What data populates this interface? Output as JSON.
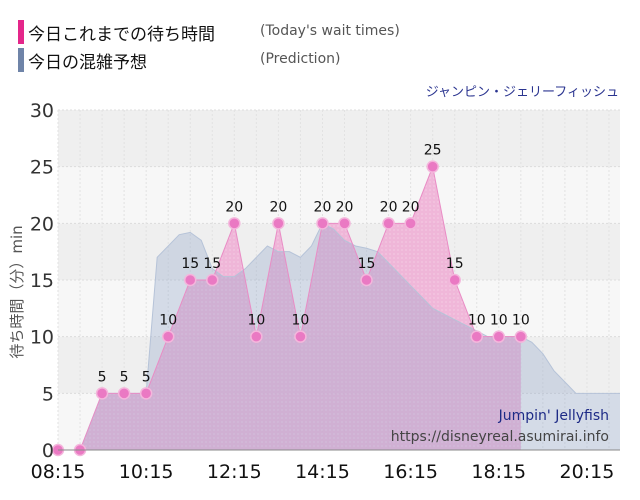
{
  "legend": {
    "actual": {
      "label": "今日これまでの待ち時間",
      "sub": "(Today's wait times)",
      "color": "#e4268a"
    },
    "prediction": {
      "label": "今日の混雑予想",
      "sub": "(Prediction)",
      "color": "#6f84a8"
    }
  },
  "chart_data": {
    "type": "area",
    "title": "ジャンピン・ジェリーフィッシュ",
    "ylabel": "待ち時間（分）min",
    "ylim": [
      0,
      30
    ],
    "yticks": [
      0,
      5,
      10,
      15,
      20,
      25,
      30
    ],
    "xlim": [
      "08:15",
      "21:00"
    ],
    "xticks": [
      "08:15",
      "10:15",
      "12:15",
      "14:15",
      "16:15",
      "18:15",
      "20:15"
    ],
    "grid": true,
    "series": [
      {
        "name": "今日の混雑予想",
        "color": "#6f84a8",
        "x": [
          "08:15",
          "08:45",
          "09:15",
          "09:45",
          "10:15",
          "10:30",
          "11:00",
          "11:15",
          "11:30",
          "11:45",
          "12:00",
          "12:15",
          "12:30",
          "12:45",
          "13:00",
          "13:15",
          "13:30",
          "13:45",
          "14:00",
          "14:15",
          "14:30",
          "14:45",
          "15:00",
          "15:15",
          "15:30",
          "15:45",
          "16:00",
          "16:15",
          "16:30",
          "16:45",
          "17:00",
          "17:15",
          "17:30",
          "17:45",
          "18:00",
          "18:15",
          "18:30",
          "18:45",
          "19:00",
          "19:15",
          "19:30",
          "19:45",
          "20:00",
          "20:15",
          "20:30",
          "20:45",
          "21:00"
        ],
        "values": [
          0,
          0,
          5,
          5,
          5,
          17,
          19,
          19.2,
          18.5,
          16,
          15.3,
          15.3,
          16,
          17,
          18,
          17.5,
          17.5,
          17,
          18,
          20,
          19.5,
          18.5,
          18,
          17.8,
          17.5,
          16.5,
          15.5,
          14.5,
          13.5,
          12.5,
          12,
          11.5,
          11,
          10.5,
          10,
          10,
          10,
          10,
          9.5,
          8.5,
          7,
          6,
          5,
          5,
          5,
          5,
          5
        ]
      },
      {
        "name": "今日これまでの待ち時間",
        "color": "#e4268a",
        "x": [
          "08:15",
          "08:45",
          "09:15",
          "09:45",
          "10:15",
          "10:45",
          "11:15",
          "11:45",
          "12:15",
          "12:45",
          "13:15",
          "13:45",
          "14:15",
          "14:45",
          "15:15",
          "15:45",
          "16:15",
          "16:45",
          "17:15",
          "17:45",
          "18:15",
          "18:45"
        ],
        "values": [
          0,
          0,
          5,
          5,
          5,
          10,
          15,
          15,
          20,
          10,
          20,
          10,
          20,
          20,
          15,
          20,
          20,
          25,
          15,
          10,
          10,
          10
        ],
        "labels": [
          "",
          "",
          "5",
          "5",
          "5",
          "10",
          "15",
          "15",
          "20",
          "10",
          "20",
          "10",
          "20",
          "20",
          "15",
          "20",
          "20",
          "25",
          "15",
          "10",
          "10",
          "10"
        ]
      }
    ],
    "annotations": [
      "Jumpin' Jellyfish",
      "https://disneyreal.asumirai.info"
    ]
  }
}
